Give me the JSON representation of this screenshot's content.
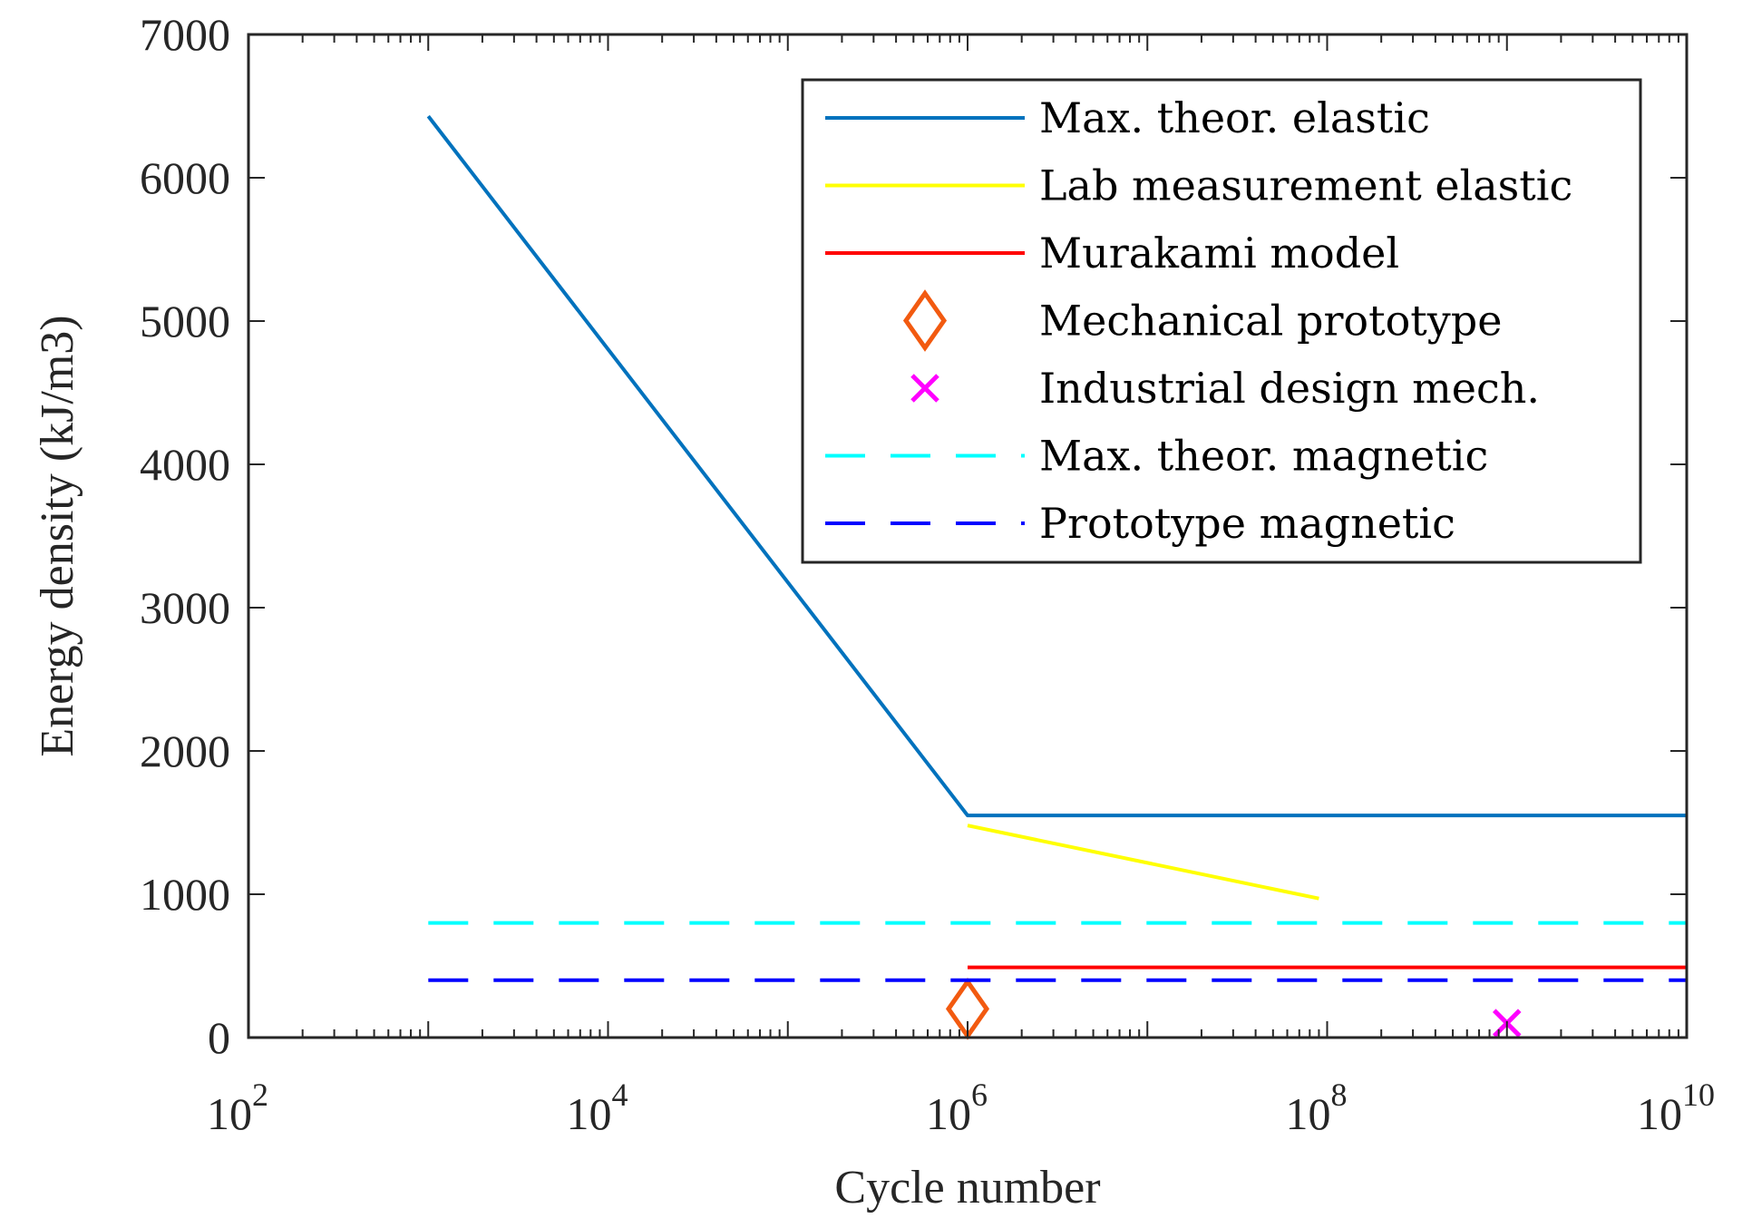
{
  "chart_data": {
    "type": "line",
    "title": "",
    "xlabel": "Cycle number",
    "ylabel": "Energy density (kJ/m3)",
    "xscale": "log",
    "xlim": [
      100,
      10000000000
    ],
    "ylim": [
      0,
      7000
    ],
    "xticks": [
      {
        "value": 100,
        "base": "10",
        "exp": "2"
      },
      {
        "value": 10000,
        "base": "10",
        "exp": "4"
      },
      {
        "value": 1000000,
        "base": "10",
        "exp": "6"
      },
      {
        "value": 100000000,
        "base": "10",
        "exp": "8"
      },
      {
        "value": 10000000000,
        "base": "10",
        "exp": "10"
      }
    ],
    "yticks": [
      {
        "value": 0,
        "label": "0"
      },
      {
        "value": 1000,
        "label": "1000"
      },
      {
        "value": 2000,
        "label": "2000"
      },
      {
        "value": 3000,
        "label": "3000"
      },
      {
        "value": 4000,
        "label": "4000"
      },
      {
        "value": 5000,
        "label": "5000"
      },
      {
        "value": 6000,
        "label": "6000"
      },
      {
        "value": 7000,
        "label": "7000"
      }
    ],
    "legend_position": "top-right",
    "series": [
      {
        "name": "Max. theor. elastic",
        "kind": "line",
        "style": "solid",
        "color": "#0072BD",
        "x": [
          1000,
          1000000,
          10000000000
        ],
        "y": [
          6430,
          1550,
          1550
        ]
      },
      {
        "name": "Lab measurement elastic",
        "kind": "line",
        "style": "solid",
        "color": "#FFFF00",
        "x": [
          1000000,
          90000000
        ],
        "y": [
          1480,
          970
        ]
      },
      {
        "name": "Murakami model",
        "kind": "line",
        "style": "solid",
        "color": "#FF0000",
        "x": [
          1000000,
          10000000000
        ],
        "y": [
          490,
          490
        ]
      },
      {
        "name": "Mechanical prototype",
        "kind": "marker",
        "marker": "diamond",
        "color": "#F25A10",
        "x": [
          1000000
        ],
        "y": [
          200
        ]
      },
      {
        "name": "Industrial design mech.",
        "kind": "marker",
        "marker": "x",
        "color": "#FF00FF",
        "x": [
          1000000000
        ],
        "y": [
          100
        ]
      },
      {
        "name": "Max. theor. magnetic",
        "kind": "line",
        "style": "dashed",
        "color": "#00FFFF",
        "x": [
          1000,
          10000000000
        ],
        "y": [
          800,
          800
        ]
      },
      {
        "name": "Prototype magnetic",
        "kind": "line",
        "style": "dashed",
        "color": "#0000FF",
        "x": [
          1000,
          10000000000
        ],
        "y": [
          400,
          400
        ]
      }
    ]
  }
}
